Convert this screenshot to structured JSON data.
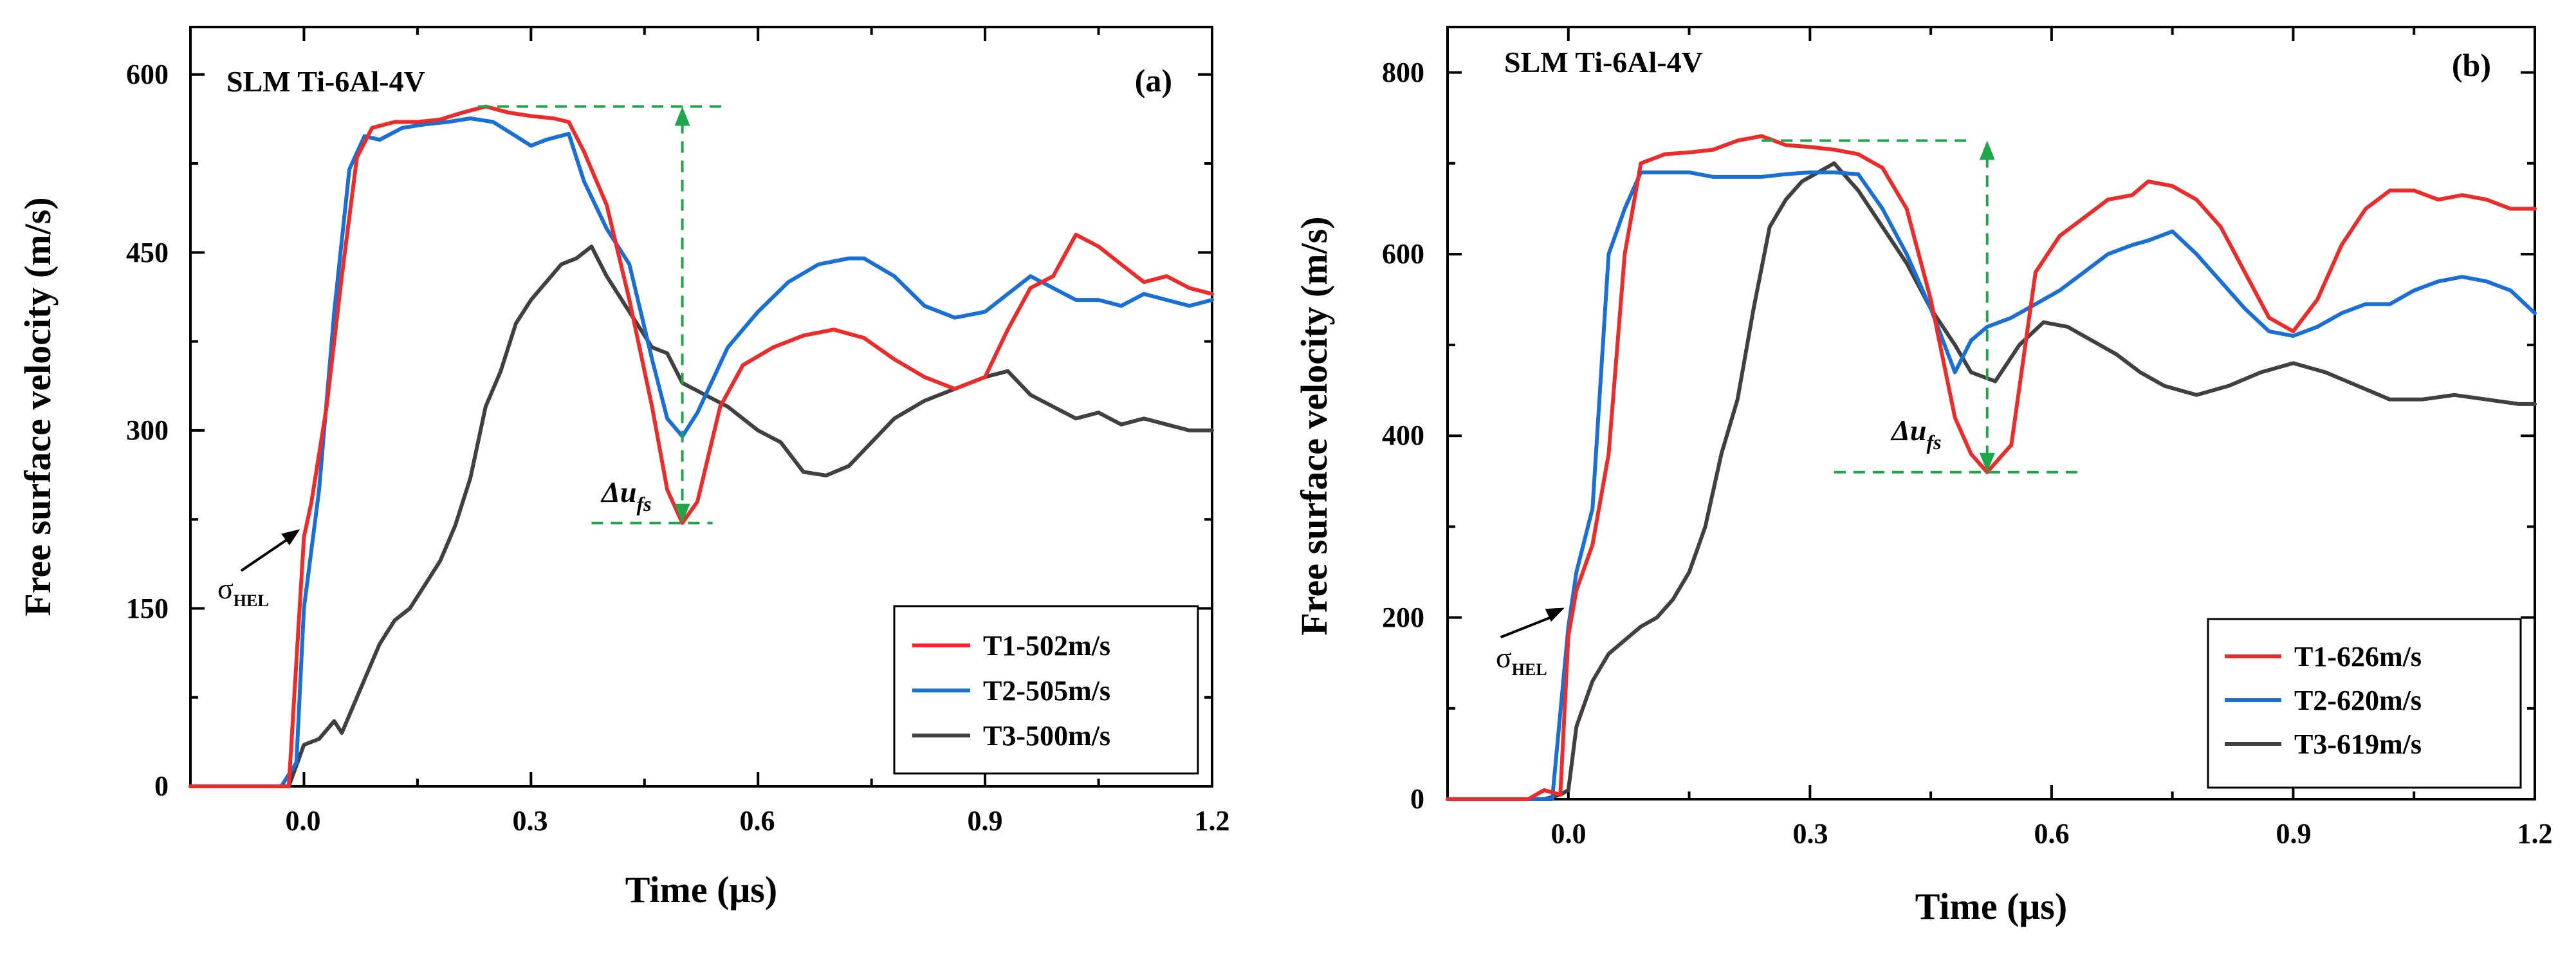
{
  "colors": {
    "t1": "#ee2b2b",
    "t2": "#1a6fd6",
    "t3": "#404040",
    "annot": "#1fa64a",
    "axis": "#000000"
  },
  "chart_data": [
    {
      "type": "line",
      "id": "a",
      "panel_label": "(a)",
      "material": "SLM Ti-6Al-4V",
      "xlabel": "Time (μs)",
      "ylabel": "Free surface velocity (m/s)",
      "xlim": [
        -0.15,
        1.2
      ],
      "ylim": [
        0,
        640
      ],
      "xticks": [
        0.0,
        0.3,
        0.6,
        0.9,
        1.2
      ],
      "xtick_labels": [
        "0.0",
        "0.3",
        "0.6",
        "0.9",
        "1.2"
      ],
      "yticks": [
        0,
        150,
        300,
        450,
        600
      ],
      "ytick_labels": [
        "0",
        "150",
        "300",
        "450",
        "600"
      ],
      "legend": "bottom-right",
      "hel_label": "σ",
      "hel_sub": "HEL",
      "delta_label": "Δu",
      "delta_sub": "fs",
      "annotations": {
        "hel_point": [
          0.0,
          220
        ],
        "hel_text_at": [
          -0.1,
          160
        ],
        "peak_value": 573,
        "peak_x_range": [
          0.23,
          0.56
        ],
        "min_value": 222,
        "min_x_range": [
          0.38,
          0.54
        ],
        "arrow_x": 0.5
      },
      "series": [
        {
          "name": "T1-502m/s",
          "color_key": "t1",
          "x": [
            -0.15,
            -0.02,
            0.0,
            0.01,
            0.03,
            0.05,
            0.07,
            0.09,
            0.12,
            0.15,
            0.18,
            0.21,
            0.24,
            0.27,
            0.3,
            0.33,
            0.35,
            0.37,
            0.4,
            0.43,
            0.46,
            0.48,
            0.5,
            0.52,
            0.55,
            0.58,
            0.62,
            0.66,
            0.7,
            0.74,
            0.78,
            0.82,
            0.86,
            0.9,
            0.93,
            0.96,
            0.99,
            1.02,
            1.05,
            1.08,
            1.11,
            1.14,
            1.17,
            1.2
          ],
          "y": [
            0,
            0,
            210,
            240,
            320,
            430,
            530,
            555,
            560,
            560,
            562,
            568,
            573,
            568,
            565,
            563,
            560,
            535,
            490,
            410,
            320,
            250,
            222,
            240,
            320,
            355,
            370,
            380,
            385,
            378,
            360,
            345,
            335,
            345,
            385,
            420,
            430,
            465,
            455,
            440,
            425,
            430,
            420,
            415
          ]
        },
        {
          "name": "T2-505m/s",
          "color_key": "t2",
          "x": [
            -0.15,
            -0.03,
            -0.01,
            0.0,
            0.02,
            0.04,
            0.06,
            0.08,
            0.1,
            0.13,
            0.16,
            0.19,
            0.22,
            0.25,
            0.28,
            0.3,
            0.32,
            0.35,
            0.37,
            0.4,
            0.43,
            0.46,
            0.48,
            0.5,
            0.52,
            0.56,
            0.6,
            0.64,
            0.68,
            0.72,
            0.74,
            0.78,
            0.82,
            0.86,
            0.9,
            0.93,
            0.96,
            0.99,
            1.02,
            1.05,
            1.08,
            1.11,
            1.14,
            1.17,
            1.2
          ],
          "y": [
            0,
            0,
            20,
            150,
            250,
            400,
            520,
            548,
            545,
            555,
            558,
            560,
            563,
            560,
            548,
            540,
            545,
            550,
            510,
            470,
            440,
            360,
            310,
            295,
            315,
            370,
            400,
            425,
            440,
            445,
            445,
            430,
            405,
            395,
            400,
            415,
            430,
            420,
            410,
            410,
            405,
            415,
            410,
            405,
            410
          ]
        },
        {
          "name": "T3-500m/s",
          "color_key": "t3",
          "x": [
            -0.15,
            -0.02,
            0.0,
            0.02,
            0.04,
            0.05,
            0.06,
            0.08,
            0.1,
            0.12,
            0.14,
            0.16,
            0.18,
            0.2,
            0.22,
            0.24,
            0.26,
            0.28,
            0.3,
            0.32,
            0.34,
            0.36,
            0.38,
            0.4,
            0.42,
            0.44,
            0.46,
            0.48,
            0.5,
            0.53,
            0.56,
            0.6,
            0.63,
            0.66,
            0.69,
            0.72,
            0.75,
            0.78,
            0.82,
            0.86,
            0.9,
            0.93,
            0.96,
            0.99,
            1.02,
            1.05,
            1.08,
            1.11,
            1.14,
            1.17,
            1.2
          ],
          "y": [
            0,
            0,
            35,
            40,
            55,
            45,
            60,
            90,
            120,
            140,
            150,
            170,
            190,
            220,
            260,
            320,
            350,
            390,
            410,
            425,
            440,
            445,
            455,
            430,
            410,
            390,
            370,
            365,
            340,
            330,
            320,
            300,
            290,
            265,
            262,
            270,
            290,
            310,
            325,
            335,
            345,
            350,
            330,
            320,
            310,
            315,
            305,
            310,
            305,
            300,
            300
          ]
        }
      ]
    },
    {
      "type": "line",
      "id": "b",
      "panel_label": "(b)",
      "material": "SLM Ti-6Al-4V",
      "xlabel": "Time (μs)",
      "ylabel": "Free surface velocity (m/s)",
      "xlim": [
        -0.15,
        1.2
      ],
      "ylim": [
        0,
        850
      ],
      "xticks": [
        0.0,
        0.3,
        0.6,
        0.9,
        1.2
      ],
      "xtick_labels": [
        "0.0",
        "0.3",
        "0.6",
        "0.9",
        "1.2"
      ],
      "yticks": [
        0,
        200,
        400,
        600,
        800
      ],
      "ytick_labels": [
        "0",
        "200",
        "400",
        "600",
        "800"
      ],
      "legend": "bottom-right",
      "hel_label": "σ",
      "hel_sub": "HEL",
      "delta_label": "Δu",
      "delta_sub": "fs",
      "annotations": {
        "hel_point": [
          0.0,
          215
        ],
        "hel_text_at": [
          -0.1,
          150
        ],
        "peak_value": 725,
        "peak_x_range": [
          0.24,
          0.5
        ],
        "min_value": 360,
        "min_x_range": [
          0.33,
          0.64
        ],
        "arrow_x": 0.52
      },
      "series": [
        {
          "name": "T1-626m/s",
          "color_key": "t1",
          "x": [
            -0.15,
            -0.05,
            -0.03,
            -0.01,
            0.0,
            0.01,
            0.03,
            0.05,
            0.07,
            0.09,
            0.12,
            0.15,
            0.18,
            0.21,
            0.24,
            0.27,
            0.3,
            0.33,
            0.36,
            0.39,
            0.42,
            0.45,
            0.48,
            0.5,
            0.52,
            0.55,
            0.58,
            0.61,
            0.64,
            0.67,
            0.7,
            0.72,
            0.75,
            0.78,
            0.81,
            0.84,
            0.87,
            0.9,
            0.93,
            0.96,
            0.99,
            1.02,
            1.05,
            1.08,
            1.11,
            1.14,
            1.17,
            1.2
          ],
          "y": [
            0,
            0,
            10,
            5,
            180,
            230,
            280,
            380,
            600,
            700,
            710,
            712,
            715,
            725,
            730,
            720,
            718,
            715,
            710,
            695,
            650,
            550,
            420,
            380,
            360,
            390,
            580,
            620,
            640,
            660,
            665,
            680,
            675,
            660,
            630,
            580,
            530,
            515,
            550,
            610,
            650,
            670,
            670,
            660,
            665,
            660,
            650,
            650
          ]
        },
        {
          "name": "T2-620m/s",
          "color_key": "t2",
          "x": [
            -0.15,
            -0.02,
            0.0,
            0.01,
            0.03,
            0.05,
            0.07,
            0.09,
            0.12,
            0.15,
            0.18,
            0.21,
            0.24,
            0.27,
            0.3,
            0.33,
            0.36,
            0.39,
            0.42,
            0.45,
            0.48,
            0.5,
            0.52,
            0.55,
            0.58,
            0.61,
            0.64,
            0.67,
            0.7,
            0.72,
            0.75,
            0.78,
            0.81,
            0.84,
            0.87,
            0.9,
            0.93,
            0.96,
            0.99,
            1.02,
            1.05,
            1.08,
            1.11,
            1.14,
            1.17,
            1.2
          ],
          "y": [
            0,
            0,
            190,
            250,
            320,
            600,
            650,
            690,
            690,
            690,
            685,
            685,
            685,
            688,
            690,
            690,
            688,
            650,
            600,
            540,
            470,
            505,
            520,
            530,
            545,
            560,
            580,
            600,
            610,
            615,
            625,
            600,
            570,
            540,
            515,
            510,
            520,
            535,
            545,
            545,
            560,
            570,
            575,
            570,
            560,
            535
          ]
        },
        {
          "name": "T3-619m/s",
          "color_key": "t3",
          "x": [
            -0.15,
            -0.03,
            -0.01,
            0.0,
            0.01,
            0.03,
            0.05,
            0.07,
            0.09,
            0.11,
            0.13,
            0.15,
            0.17,
            0.19,
            0.21,
            0.23,
            0.25,
            0.27,
            0.29,
            0.31,
            0.33,
            0.36,
            0.39,
            0.42,
            0.45,
            0.48,
            0.5,
            0.53,
            0.56,
            0.59,
            0.62,
            0.65,
            0.68,
            0.71,
            0.74,
            0.78,
            0.82,
            0.86,
            0.9,
            0.94,
            0.98,
            1.02,
            1.06,
            1.1,
            1.14,
            1.18,
            1.2
          ],
          "y": [
            0,
            0,
            5,
            10,
            80,
            130,
            160,
            175,
            190,
            200,
            220,
            250,
            300,
            380,
            440,
            540,
            630,
            660,
            680,
            690,
            700,
            670,
            630,
            590,
            540,
            500,
            470,
            460,
            500,
            525,
            520,
            505,
            490,
            470,
            455,
            445,
            455,
            470,
            480,
            470,
            455,
            440,
            440,
            445,
            440,
            435,
            435
          ]
        }
      ]
    }
  ]
}
